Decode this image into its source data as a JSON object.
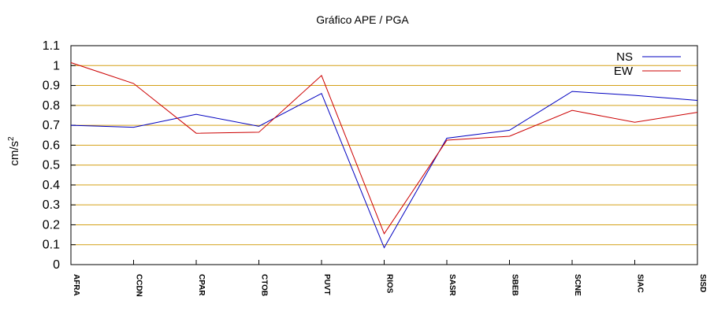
{
  "chart_data": {
    "type": "line",
    "title": "Gráfico  APE / PGA",
    "ylabel": "cm/s",
    "ylabel_sup": "2",
    "xlabel": "",
    "categories": [
      "AFRA",
      "CCDN",
      "CPAR",
      "CTOB",
      "PUVT",
      "RIOS",
      "SASR",
      "SBEB",
      "SCNE",
      "SIAC",
      "SISD"
    ],
    "yticks": [
      "0",
      "0.1",
      "0.2",
      "0.3",
      "0.4",
      "0.5",
      "0.6",
      "0.7",
      "0.8",
      "0.9",
      "1",
      "1.1"
    ],
    "ylim": [
      0,
      1.1
    ],
    "grid": true,
    "legend_position": "top-right",
    "series": [
      {
        "name": "NS",
        "color": "#0000c0",
        "values": [
          0.7,
          0.69,
          0.755,
          0.695,
          0.86,
          0.085,
          0.635,
          0.675,
          0.87,
          0.85,
          0.825
        ]
      },
      {
        "name": "EW",
        "color": "#cc0000",
        "values": [
          1.015,
          0.91,
          0.66,
          0.665,
          0.95,
          0.155,
          0.625,
          0.645,
          0.775,
          0.715,
          0.765
        ]
      }
    ],
    "grid_color": "#d4a017"
  }
}
